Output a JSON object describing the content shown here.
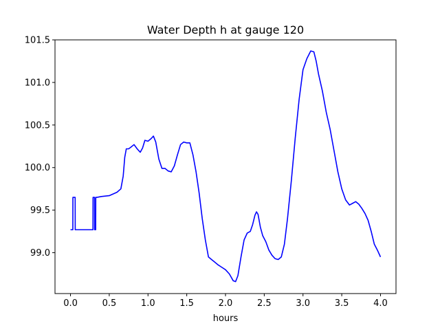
{
  "chart_data": {
    "type": "line",
    "title": "Water Depth h at gauge 120",
    "xlabel": "hours",
    "ylabel": "",
    "xlim": [
      -0.2,
      4.2
    ],
    "ylim": [
      98.52,
      101.5
    ],
    "xticks": [
      0.0,
      0.5,
      1.0,
      1.5,
      2.0,
      2.5,
      3.0,
      3.5,
      4.0
    ],
    "xtick_labels": [
      "0.0",
      "0.5",
      "1.0",
      "1.5",
      "2.0",
      "2.5",
      "3.0",
      "3.5",
      "4.0"
    ],
    "yticks": [
      99.0,
      99.5,
      100.0,
      100.5,
      101.0,
      101.5
    ],
    "ytick_labels": [
      "99.0",
      "99.5",
      "100.0",
      "100.5",
      "101.0",
      "101.5"
    ],
    "grid": false,
    "series": [
      {
        "color": "#0000ff",
        "x": [
          0.0,
          0.03,
          0.031,
          0.06,
          0.061,
          0.29,
          0.291,
          0.31,
          0.311,
          0.325,
          0.326,
          0.34,
          0.4,
          0.5,
          0.55,
          0.6,
          0.65,
          0.68,
          0.7,
          0.72,
          0.75,
          0.78,
          0.82,
          0.86,
          0.9,
          0.93,
          0.96,
          1.0,
          1.04,
          1.07,
          1.1,
          1.14,
          1.18,
          1.22,
          1.26,
          1.3,
          1.34,
          1.38,
          1.42,
          1.46,
          1.5,
          1.54,
          1.58,
          1.62,
          1.66,
          1.7,
          1.74,
          1.78,
          1.82,
          1.86,
          1.9,
          1.95,
          2.0,
          2.05,
          2.1,
          2.13,
          2.16,
          2.2,
          2.24,
          2.28,
          2.32,
          2.35,
          2.38,
          2.4,
          2.42,
          2.45,
          2.48,
          2.52,
          2.56,
          2.6,
          2.64,
          2.68,
          2.72,
          2.76,
          2.8,
          2.85,
          2.9,
          2.95,
          3.0,
          3.05,
          3.1,
          3.14,
          3.17,
          3.2,
          3.25,
          3.3,
          3.35,
          3.4,
          3.45,
          3.5,
          3.55,
          3.6,
          3.64,
          3.68,
          3.72,
          3.76,
          3.8,
          3.84,
          3.88,
          3.92,
          3.96,
          4.0
        ],
        "y": [
          99.27,
          99.27,
          99.65,
          99.65,
          99.27,
          99.27,
          99.65,
          99.65,
          99.27,
          99.27,
          99.65,
          99.65,
          99.66,
          99.67,
          99.69,
          99.71,
          99.75,
          99.9,
          100.12,
          100.22,
          100.22,
          100.24,
          100.27,
          100.22,
          100.18,
          100.23,
          100.32,
          100.31,
          100.34,
          100.37,
          100.3,
          100.1,
          99.99,
          99.99,
          99.96,
          99.95,
          100.02,
          100.15,
          100.27,
          100.3,
          100.29,
          100.29,
          100.15,
          99.95,
          99.7,
          99.4,
          99.15,
          98.95,
          98.92,
          98.89,
          98.86,
          98.83,
          98.8,
          98.75,
          98.67,
          98.66,
          98.73,
          98.95,
          99.15,
          99.23,
          99.25,
          99.33,
          99.44,
          99.48,
          99.45,
          99.3,
          99.2,
          99.13,
          99.03,
          98.97,
          98.93,
          98.92,
          98.95,
          99.1,
          99.4,
          99.85,
          100.35,
          100.8,
          101.15,
          101.28,
          101.37,
          101.36,
          101.25,
          101.1,
          100.9,
          100.65,
          100.45,
          100.2,
          99.95,
          99.75,
          99.62,
          99.56,
          99.58,
          99.6,
          99.57,
          99.52,
          99.46,
          99.38,
          99.25,
          99.1,
          99.03,
          98.95
        ]
      }
    ]
  }
}
